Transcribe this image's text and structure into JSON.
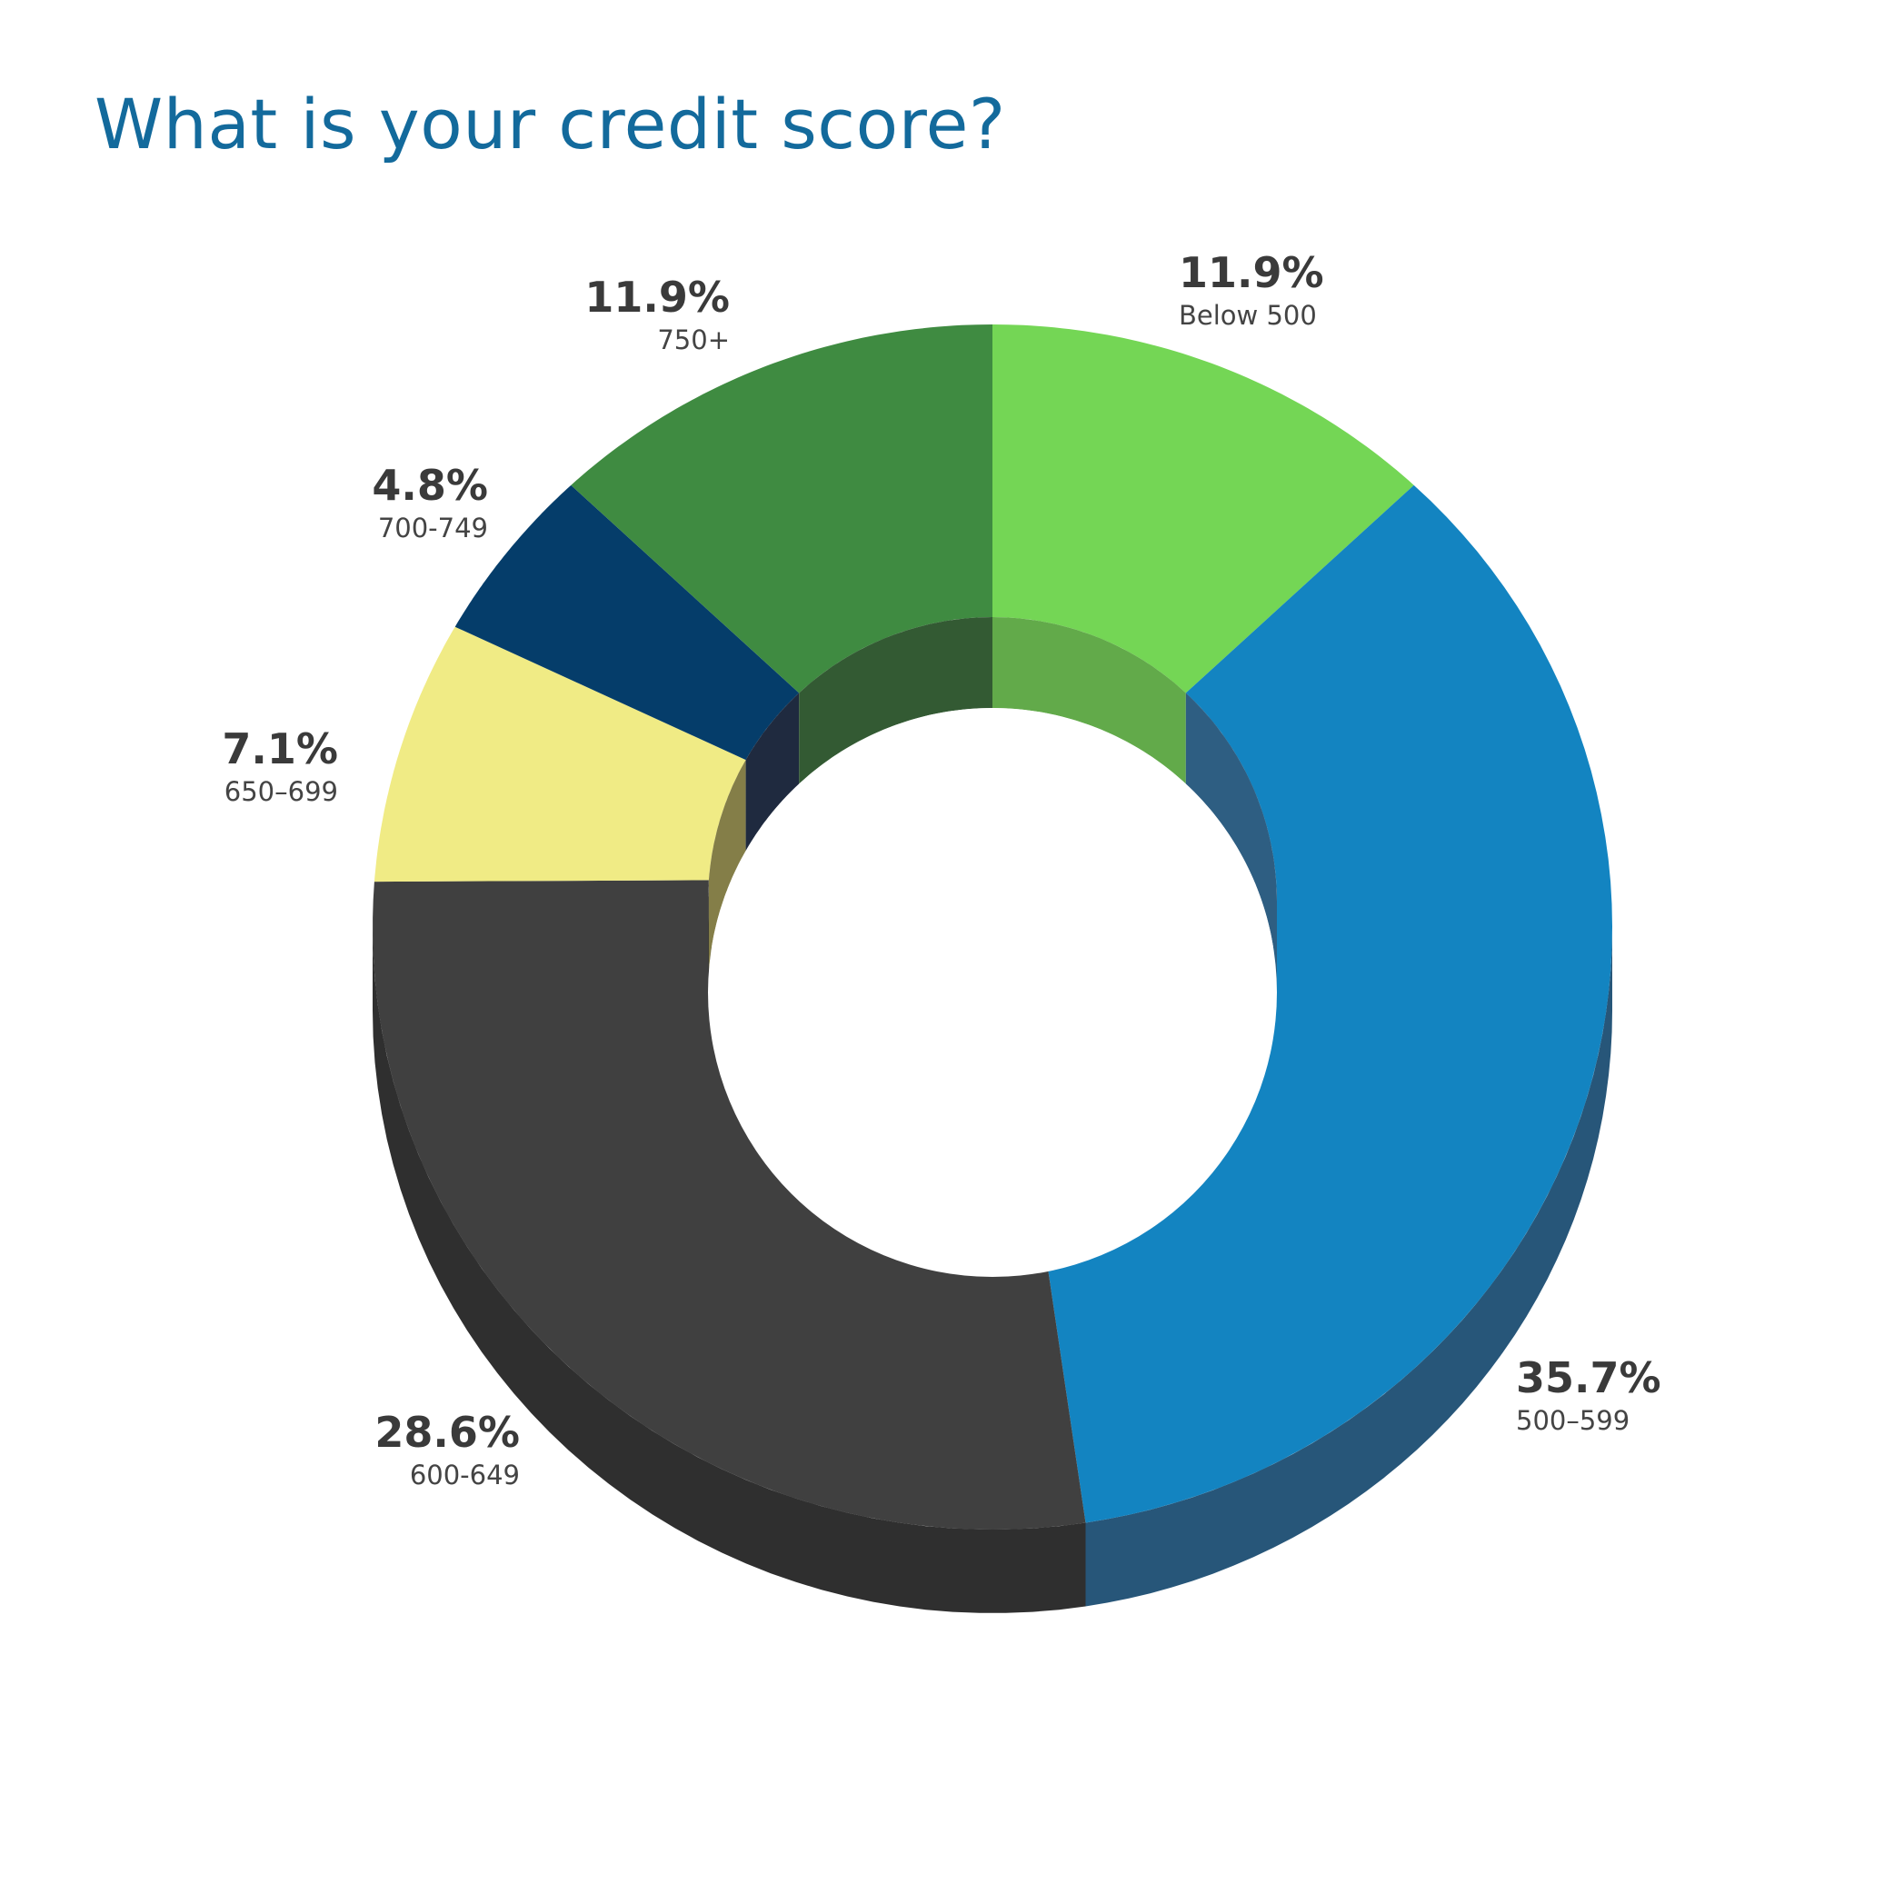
{
  "chart_data": {
    "type": "pie",
    "title": "What is your credit score?",
    "categories": [
      "Below 500",
      "500–599",
      "600-649",
      "650–699",
      "700-749",
      "750+"
    ],
    "values": [
      11.9,
      35.7,
      28.6,
      7.1,
      4.8,
      11.9
    ],
    "value_labels": [
      "11.9%",
      "35.7%",
      "28.6%",
      "7.1%",
      "4.8%",
      "11.9%"
    ],
    "colors": [
      "#74d655",
      "#1384c1",
      "#404040",
      "#f0eb85",
      "#053d6a",
      "#3f8b41"
    ],
    "side_colors": [
      "#4f9a3b",
      "#275679",
      "#2f2f2f",
      "#a7a25a",
      "#1b2a40",
      "#2d5e2e"
    ],
    "inner_colors": [
      "#62aa4a",
      "#2e5e82",
      "#333333",
      "#847e48",
      "#1f2a3f",
      "#335a33"
    ],
    "legend": "none"
  }
}
